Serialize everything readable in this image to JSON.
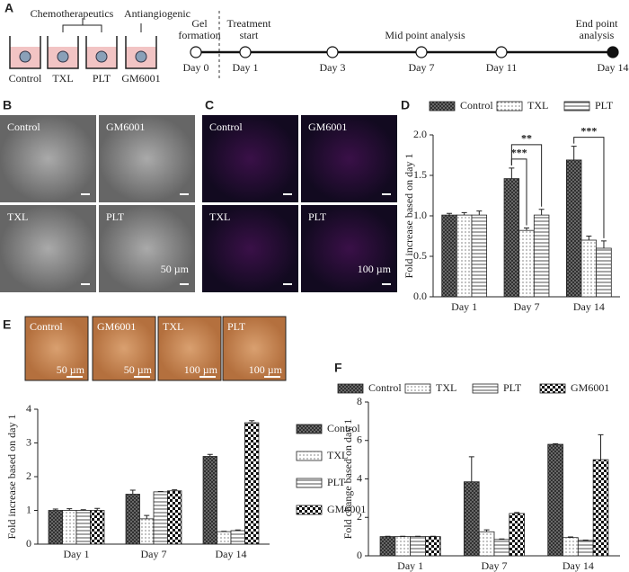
{
  "diagram": {
    "panel": "A",
    "groups": [
      "Chemotherapeutics",
      "Antiangiogenic"
    ],
    "wells": [
      "Control",
      "TXL",
      "PLT",
      "GM6001"
    ],
    "timeline": [
      {
        "day": "Day 0",
        "note": [
          "Gel",
          "formation"
        ]
      },
      {
        "day": "Day 1",
        "note": [
          "Treatment",
          "start"
        ]
      },
      {
        "day": "Day 3"
      },
      {
        "day": "Day 7",
        "note": [
          "Mid point analysis"
        ]
      },
      {
        "day": "Day 11"
      },
      {
        "day": "Day 14",
        "note": [
          "End point",
          "analysis"
        ]
      }
    ]
  },
  "images": [
    {
      "panel": "B",
      "tiles": [
        "Control",
        "GM6001",
        "TXL",
        "PLT"
      ],
      "scale": "50 µm"
    },
    {
      "panel": "C",
      "tiles": [
        "Control",
        "GM6001",
        "TXL",
        "PLT"
      ],
      "scale": "100 µm"
    },
    {
      "panel": "E",
      "tiles": [
        {
          "label": "Control",
          "scale": "50 µm"
        },
        {
          "label": "GM6001",
          "scale": "50 µm"
        },
        {
          "label": "TXL",
          "scale": "100 µm"
        },
        {
          "label": "PLT",
          "scale": "100 µm"
        }
      ]
    }
  ],
  "chart_data": [
    {
      "type": "bar",
      "panel": "D",
      "y_label": "Fold increase based on day 1",
      "legend": "top",
      "categories": [
        "Day 1",
        "Day 7",
        "Day 14"
      ],
      "series": [
        {
          "name": "Control",
          "color": "#222",
          "pattern": "cross",
          "values": [
            1.01,
            1.46,
            1.69
          ],
          "errors": [
            0.02,
            0.13,
            0.17
          ]
        },
        {
          "name": "TXL",
          "color": "#222",
          "pattern": "dots",
          "values": [
            1.01,
            0.82,
            0.7
          ],
          "errors": [
            0.03,
            0.03,
            0.05
          ]
        },
        {
          "name": "PLT",
          "color": "#222",
          "pattern": "hlines",
          "values": [
            1.01,
            1.01,
            0.6
          ],
          "errors": [
            0.05,
            0.07,
            0.09
          ]
        }
      ],
      "annotations": [
        {
          "text": "***",
          "category": 1,
          "from": 0,
          "to": 1
        },
        {
          "text": "**",
          "category": 1,
          "from": 0,
          "to": 2
        },
        {
          "text": "***",
          "category": 2,
          "from": 0,
          "to": 2
        }
      ],
      "ylim": [
        0,
        2
      ],
      "yticks": [
        {
          "value": 0,
          "label": "0.0"
        },
        0.5,
        {
          "value": 1,
          "label": "1.0"
        },
        1.5,
        {
          "value": 2,
          "label": "2.0"
        }
      ]
    },
    {
      "type": "bar",
      "y_label": "Fold increase based on day 1",
      "legend": "right",
      "categories": [
        "Day 1",
        "Day 7",
        "Day 14"
      ],
      "series": [
        {
          "name": "Control",
          "color": "#222",
          "pattern": "cross",
          "values": [
            1.0,
            1.48,
            2.6
          ],
          "errors": [
            0.04,
            0.12,
            0.06
          ]
        },
        {
          "name": "TXL",
          "color": "#222",
          "pattern": "dots",
          "values": [
            1.0,
            0.75,
            0.37
          ],
          "errors": [
            0.05,
            0.1,
            0.01
          ]
        },
        {
          "name": "PLT",
          "color": "#222",
          "pattern": "hlines",
          "values": [
            1.0,
            1.55,
            0.4
          ],
          "errors": [
            0.02,
            0.01,
            0.02
          ]
        },
        {
          "name": "GM6001",
          "color": "#222",
          "pattern": "checker",
          "values": [
            1.0,
            1.58,
            3.6
          ],
          "errors": [
            0.06,
            0.03,
            0.06
          ]
        }
      ],
      "ylim": [
        0,
        4
      ],
      "yticks": [
        0,
        1,
        2,
        3,
        4
      ]
    },
    {
      "type": "bar",
      "panel": "F",
      "y_label": "Fold change based on day 1",
      "legend": "top",
      "categories": [
        "Day 1",
        "Day 7",
        "Day 14"
      ],
      "series": [
        {
          "name": "Control",
          "color": "#222",
          "pattern": "cross",
          "values": [
            1.0,
            3.85,
            5.8
          ],
          "errors": [
            0.02,
            1.3,
            0.03
          ]
        },
        {
          "name": "TXL",
          "color": "#222",
          "pattern": "dots",
          "values": [
            1.0,
            1.25,
            0.95
          ],
          "errors": [
            0.02,
            0.1,
            0.03
          ]
        },
        {
          "name": "PLT",
          "color": "#222",
          "pattern": "hlines",
          "values": [
            1.0,
            0.85,
            0.8
          ],
          "errors": [
            0.02,
            0.03,
            0.02
          ]
        },
        {
          "name": "GM6001",
          "color": "#222",
          "pattern": "checker",
          "values": [
            1.0,
            2.2,
            5.0
          ],
          "errors": [
            0.02,
            0.05,
            1.3
          ]
        }
      ],
      "ylim": [
        0,
        8
      ],
      "yticks": [
        0,
        2,
        4,
        6,
        8
      ]
    }
  ]
}
